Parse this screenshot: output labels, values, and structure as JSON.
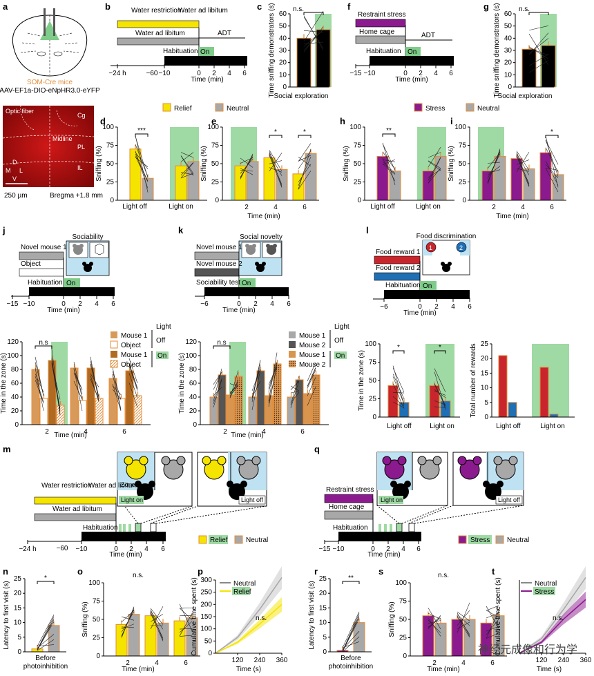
{
  "panels": {
    "a": "a",
    "b": "b",
    "c": "c",
    "d": "d",
    "e": "e",
    "f": "f",
    "g": "g",
    "h": "h",
    "i": "i",
    "j": "j",
    "k": "k",
    "l": "l",
    "m": "m",
    "n": "n",
    "o": "o",
    "p": "p",
    "q": "q",
    "r": "r",
    "s": "s",
    "t": "t"
  },
  "panel_a": {
    "mice": "SOM-Cre mice",
    "virus": "AAV-EF1a-DIO-eNpHR3.0-eYFP",
    "optic_fiber": "Optic fiber",
    "cg": "Cg",
    "midline": "Midline",
    "pl": "PL",
    "il": "IL",
    "d": "D",
    "m": "M",
    "l": "L",
    "v": "V",
    "scale": "250 µm",
    "bregma": "Bregma +1.8 mm"
  },
  "panel_b": {
    "water_restriction": "Water restriction",
    "water_ad_lib_top": "Water ad libitum",
    "water_ad_lib": "Water ad libitum",
    "adt": "ADT",
    "habituation": "Habituation",
    "on": "On",
    "ticks": [
      "−24 h",
      "−60",
      "−10",
      "0",
      "2",
      "4",
      "6"
    ],
    "xlabel": "Time (min)"
  },
  "panel_c": {
    "ylabel": "Time sniffing demonstrators (s)",
    "ns": "n.s.",
    "xlabel": "Social exploration",
    "ticks": [
      "0",
      "10",
      "20",
      "30",
      "40",
      "50",
      "60"
    ]
  },
  "panel_f": {
    "restraint": "Restraint stress",
    "home": "Home cage",
    "adt": "ADT",
    "habituation": "Habituation",
    "on": "On",
    "ticks": [
      "−15",
      "−10",
      "0",
      "2",
      "4",
      "6"
    ],
    "xlabel": "Time (min)"
  },
  "panel_g": {
    "ylabel": "Time sniffing demonstrators (s)",
    "ns": "n.s.",
    "xlabel": "Social exploration",
    "ticks": [
      "0",
      "10",
      "20",
      "30",
      "40",
      "50",
      "60"
    ]
  },
  "legend_de": {
    "relief": "Relief",
    "neutral": "Neutral"
  },
  "legend_hi": {
    "stress": "Stress",
    "neutral": "Neutral"
  },
  "panel_d": {
    "ylabel": "Sniffing (%)",
    "sig": "***",
    "x1": "Light off",
    "x2": "Light on",
    "ticks": [
      "0",
      "25",
      "50",
      "75",
      "100"
    ]
  },
  "panel_e": {
    "ylabel": "Sniffing (%)",
    "sig1": "*",
    "sig2": "*",
    "xlabel": "Time (min)",
    "xt": [
      "2",
      "4",
      "6"
    ],
    "ticks": [
      "0",
      "25",
      "50",
      "75",
      "100"
    ]
  },
  "panel_h": {
    "ylabel": "Sniffing (%)",
    "sig": "**",
    "x1": "Light off",
    "x2": "Light on",
    "ticks": [
      "0",
      "25",
      "50",
      "75",
      "100"
    ]
  },
  "panel_i": {
    "ylabel": "Sniffing (%)",
    "sig": "*",
    "xlabel": "Time (min)",
    "xt": [
      "2",
      "4",
      "6"
    ],
    "ticks": [
      "0",
      "25",
      "50",
      "75",
      "100"
    ]
  },
  "panel_j": {
    "title": "Sociability",
    "novel1": "Novel mouse 1",
    "object": "Object",
    "habituation": "Habituation",
    "on": "On",
    "ticks": [
      "−15",
      "−10",
      "0",
      "2",
      "4",
      "6"
    ],
    "xlabel": "Time (min)"
  },
  "panel_k": {
    "title": "Social novelty",
    "novel1": "Novel mouse 1",
    "novel2": "Novel mouse 2",
    "soc": "Sociability test",
    "on": "On",
    "ticks": [
      "−6",
      "0",
      "2",
      "4",
      "6"
    ],
    "xlabel": "Time (min)"
  },
  "panel_l": {
    "title": "Food discrimination",
    "fr1": "Food reward 1",
    "fr2": "Food reward 2",
    "habituation": "Habituation",
    "on": "On",
    "ticks": [
      "−6",
      "0",
      "2",
      "4",
      "6"
    ],
    "xlabel": "Time (min)",
    "n1": "1",
    "n2": "2"
  },
  "legend_j": {
    "m1": "Mouse 1",
    "obj": "Object",
    "m1b": "Mouse 1",
    "objb": "Object",
    "light": "Light",
    "off": "Off",
    "on": "On"
  },
  "legend_k": {
    "m1": "Mouse 1",
    "m2": "Mouse 2",
    "m1b": "Mouse 1",
    "m2b": "Mouse 2",
    "light": "Light",
    "off": "Off",
    "on": "On"
  },
  "bottom_j": {
    "ylabel": "Time in the zone (s)",
    "ns": "n.s",
    "xlabel": "Time (min)",
    "xt": [
      "2",
      "4",
      "6"
    ],
    "ticks": [
      "0",
      "20",
      "40",
      "60",
      "80",
      "100",
      "120"
    ]
  },
  "bottom_k": {
    "ylabel": "Time in the zone (s)",
    "ns": "n.s",
    "xlabel": "Time (min)",
    "xt": [
      "2",
      "4",
      "6"
    ],
    "ticks": [
      "0",
      "20",
      "40",
      "60",
      "80",
      "100",
      "120"
    ]
  },
  "bottom_l1": {
    "ylabel": "Time in the zone (s)",
    "sig1": "*",
    "sig2": "*",
    "x1": "Light off",
    "x2": "Light on",
    "ticks": [
      "0",
      "25",
      "50",
      "75",
      "100"
    ]
  },
  "bottom_l2": {
    "ylabel": "Total number of rewards",
    "x1": "Light off",
    "x2": "Light on",
    "ticks": [
      "0",
      "5",
      "10",
      "15",
      "20",
      "25"
    ]
  },
  "panel_m": {
    "water_restriction": "Water restriction",
    "water_ad_lib_top": "Water ad libitum",
    "water_ad_lib": "Water ad libitum",
    "habituation": "Habituation",
    "zone": "Zone",
    "light_on": "Light on",
    "light_off": "Light off",
    "ticks": [
      "−24 h",
      "−60",
      "−10",
      "0",
      "2",
      "4",
      "6"
    ],
    "xlabel": "Time (min)",
    "relief": "Relief",
    "neutral": "Neutral"
  },
  "panel_q": {
    "restraint": "Restraint stress",
    "home": "Home cage",
    "habituation": "Habituation",
    "light_on": "Light on",
    "light_off": "Light off",
    "ticks": [
      "−15",
      "−10",
      "0",
      "2",
      "4",
      "6"
    ],
    "xlabel": "Time (min)",
    "stress": "Stress",
    "neutral": "Neutral"
  },
  "panel_n": {
    "ylabel": "Latency to first visit (s)",
    "sig": "*",
    "xlabel1": "Before",
    "xlabel2": "photoinhibition",
    "ticks": [
      "0",
      "5",
      "10",
      "15",
      "20",
      "25"
    ]
  },
  "panel_o": {
    "ylabel": "Sniffing (%)",
    "ns": "n.s.",
    "xlabel": "Time (min)",
    "xt": [
      "2",
      "4",
      "6"
    ],
    "ticks": [
      "0",
      "25",
      "50",
      "75",
      "100"
    ]
  },
  "panel_p": {
    "ylabel": "Cumulative time spent (s)",
    "ns": "n.s.",
    "xlabel": "Time (s)",
    "xt": [
      "120",
      "240",
      "360"
    ],
    "ticks": [
      "0",
      "50",
      "100",
      "150",
      "200",
      "250",
      "300"
    ],
    "neutral": "Neutral",
    "relief": "Relief"
  },
  "panel_r": {
    "ylabel": "Latency to first visit (s)",
    "sig": "**",
    "xlabel1": "Before",
    "xlabel2": "photoinhibition",
    "ticks": [
      "0",
      "5",
      "10",
      "15",
      "20",
      "25"
    ]
  },
  "panel_s": {
    "ylabel": "Sniffing (%)",
    "ns": "n.s.",
    "xlabel": "Time (min)",
    "xt": [
      "2",
      "4",
      "6"
    ],
    "ticks": [
      "0",
      "25",
      "50",
      "75",
      "100"
    ]
  },
  "panel_t": {
    "ylabel": "Cumulative time spent (s)",
    "ns": "n.s.",
    "xlabel": "Time (s)",
    "xt": [
      "120",
      "240",
      "360"
    ],
    "neutral": "Neutral",
    "stress": "Stress"
  },
  "watermark": "神经元成像和行为学",
  "colors": {
    "yellow": "#f5e400",
    "grey": "#a8a8a8",
    "purple": "#8b1a8e",
    "green": "#9fd9a4",
    "orange": "#f0a050",
    "red": "#c8262c",
    "blue": "#1f6fb5",
    "lightblue": "#bfe2f2"
  },
  "chart_data": [
    {
      "panel": "c",
      "type": "bar",
      "categories": [
        "Relief",
        "Neutral"
      ],
      "values": [
        40,
        47
      ],
      "ylim": [
        0,
        60
      ]
    },
    {
      "panel": "g",
      "type": "bar",
      "categories": [
        "Stress",
        "Neutral"
      ],
      "values": [
        31,
        34
      ],
      "ylim": [
        0,
        60
      ]
    },
    {
      "panel": "d",
      "type": "bar",
      "categories": [
        "Light off",
        "Light on"
      ],
      "series": [
        {
          "name": "Relief",
          "values": [
            70,
            47
          ]
        },
        {
          "name": "Neutral",
          "values": [
            30,
            53
          ]
        }
      ],
      "ylim": [
        0,
        100
      ]
    },
    {
      "panel": "e",
      "type": "bar",
      "categories": [
        "2",
        "4",
        "6"
      ],
      "series": [
        {
          "name": "Relief",
          "values": [
            47,
            58,
            36
          ]
        },
        {
          "name": "Neutral",
          "values": [
            53,
            42,
            64
          ]
        }
      ],
      "ylim": [
        0,
        100
      ]
    },
    {
      "panel": "h",
      "type": "bar",
      "categories": [
        "Light off",
        "Light on"
      ],
      "series": [
        {
          "name": "Stress",
          "values": [
            60,
            40
          ]
        },
        {
          "name": "Neutral",
          "values": [
            40,
            60
          ]
        }
      ],
      "ylim": [
        0,
        100
      ]
    },
    {
      "panel": "i",
      "type": "bar",
      "categories": [
        "2",
        "4",
        "6"
      ],
      "series": [
        {
          "name": "Stress",
          "values": [
            40,
            57,
            65
          ]
        },
        {
          "name": "Neutral",
          "values": [
            60,
            43,
            35
          ]
        }
      ],
      "ylim": [
        0,
        100
      ]
    },
    {
      "panel": "j",
      "type": "bar",
      "categories": [
        "2",
        "4",
        "6"
      ],
      "series": [
        {
          "name": "Mouse 1",
          "values": [
            80,
            82,
            67
          ]
        },
        {
          "name": "Object",
          "values": [
            38,
            35,
            38
          ]
        },
        {
          "name": "Mouse 1",
          "values": [
            93,
            82,
            78
          ]
        },
        {
          "name": "Object",
          "values": [
            28,
            38,
            42
          ]
        }
      ],
      "ylim": [
        0,
        120
      ]
    },
    {
      "panel": "k",
      "type": "bar",
      "categories": [
        "2",
        "4",
        "6"
      ],
      "series": [
        {
          "name": "Mouse 1",
          "values": [
            40,
            40,
            40
          ]
        },
        {
          "name": "Mouse 2",
          "values": [
            72,
            78,
            65
          ]
        },
        {
          "name": "Mouse 1",
          "values": [
            43,
            42,
            45
          ]
        },
        {
          "name": "Mouse 2",
          "values": [
            70,
            88,
            72
          ]
        }
      ],
      "ylim": [
        0,
        120
      ]
    },
    {
      "panel": "l1",
      "type": "bar",
      "categories": [
        "Light off",
        "Light on"
      ],
      "series": [
        {
          "name": "Food reward 1",
          "values": [
            43,
            43
          ]
        },
        {
          "name": "Food reward 2",
          "values": [
            20,
            22
          ]
        }
      ],
      "ylim": [
        0,
        100
      ]
    },
    {
      "panel": "l2",
      "type": "bar",
      "categories": [
        "Light off",
        "Light on"
      ],
      "series": [
        {
          "name": "Food reward 1",
          "values": [
            21,
            17
          ]
        },
        {
          "name": "Food reward 2",
          "values": [
            5,
            1
          ]
        }
      ],
      "ylim": [
        0,
        25
      ]
    },
    {
      "panel": "n",
      "type": "bar",
      "categories": [
        "Relief",
        "Neutral"
      ],
      "values": [
        1,
        9
      ],
      "ylim": [
        0,
        25
      ]
    },
    {
      "panel": "o",
      "type": "bar",
      "categories": [
        "2",
        "4",
        "6"
      ],
      "series": [
        {
          "name": "Relief",
          "values": [
            43,
            55,
            48
          ]
        },
        {
          "name": "Neutral",
          "values": [
            57,
            45,
            52
          ]
        }
      ],
      "ylim": [
        0,
        100
      ]
    },
    {
      "panel": "p",
      "type": "line",
      "x": [
        0,
        120,
        240,
        360
      ],
      "series": [
        {
          "name": "Neutral",
          "values": [
            0,
            65,
            180,
            310
          ]
        },
        {
          "name": "Relief",
          "values": [
            0,
            45,
            120,
            200
          ]
        }
      ],
      "xlim": [
        0,
        360
      ],
      "ylim": [
        0,
        300
      ]
    },
    {
      "panel": "r",
      "type": "bar",
      "categories": [
        "Stress",
        "Neutral"
      ],
      "values": [
        0.5,
        10
      ],
      "ylim": [
        0,
        25
      ]
    },
    {
      "panel": "s",
      "type": "bar",
      "categories": [
        "2",
        "4",
        "6"
      ],
      "series": [
        {
          "name": "Stress",
          "values": [
            55,
            50,
            45
          ]
        },
        {
          "name": "Neutral",
          "values": [
            45,
            50,
            55
          ]
        }
      ],
      "ylim": [
        0,
        100
      ]
    },
    {
      "panel": "t",
      "type": "line",
      "x": [
        0,
        120,
        240,
        360
      ],
      "series": [
        {
          "name": "Neutral",
          "values": [
            0,
            60,
            180,
            310
          ]
        },
        {
          "name": "Stress",
          "values": [
            0,
            45,
            140,
            220
          ]
        }
      ],
      "xlim": [
        0,
        360
      ]
    }
  ]
}
